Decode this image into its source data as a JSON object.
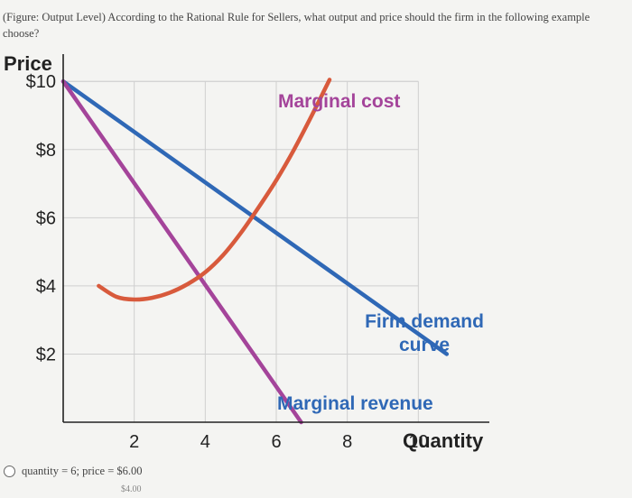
{
  "question": {
    "text": "(Figure: Output Level) According to the Rational Rule for Sellers, what output and price should the firm in the following example choose?"
  },
  "options": [
    {
      "label": "quantity = 6; price = $6.00"
    },
    {
      "label": "$4.00"
    }
  ],
  "chart_data": {
    "type": "line",
    "title": "",
    "xlabel": "Quantity",
    "ylabel": "Price",
    "xlim": [
      0,
      12
    ],
    "ylim": [
      0,
      10.8
    ],
    "x_ticks": [
      {
        "value": 2,
        "label": "2"
      },
      {
        "value": 4,
        "label": "4"
      },
      {
        "value": 6,
        "label": "6"
      },
      {
        "value": 8,
        "label": "8"
      },
      {
        "value": 10,
        "label": "10"
      }
    ],
    "y_ticks": [
      {
        "value": 10,
        "label": "$10"
      },
      {
        "value": 8,
        "label": "$8"
      },
      {
        "value": 6,
        "label": "$6"
      },
      {
        "value": 4,
        "label": "$4"
      },
      {
        "value": 2,
        "label": "$2"
      }
    ],
    "grid": true,
    "series": [
      {
        "name": "Firm demand curve",
        "label_lines": [
          "Firm demand",
          "curve"
        ],
        "color": "#2f68b6",
        "points": [
          [
            0,
            10
          ],
          [
            10.8,
            2
          ]
        ]
      },
      {
        "name": "Marginal revenue",
        "label_lines": [
          "Marginal revenue"
        ],
        "color": "#a4449a",
        "points": [
          [
            0,
            10
          ],
          [
            6.7,
            0
          ]
        ]
      },
      {
        "name": "Marginal cost",
        "label_lines": [
          "Marginal cost"
        ],
        "color": "#d85a3c",
        "points": [
          [
            1,
            4
          ],
          [
            1.5,
            3.68
          ],
          [
            2,
            3.6
          ],
          [
            2.5,
            3.65
          ],
          [
            3,
            3.8
          ],
          [
            3.5,
            4.05
          ],
          [
            4,
            4.4
          ],
          [
            4.5,
            4.9
          ],
          [
            5,
            5.55
          ],
          [
            5.5,
            6.3
          ],
          [
            6,
            7.1
          ],
          [
            6.5,
            8
          ],
          [
            7,
            9
          ],
          [
            7.5,
            10.05
          ]
        ]
      }
    ]
  }
}
